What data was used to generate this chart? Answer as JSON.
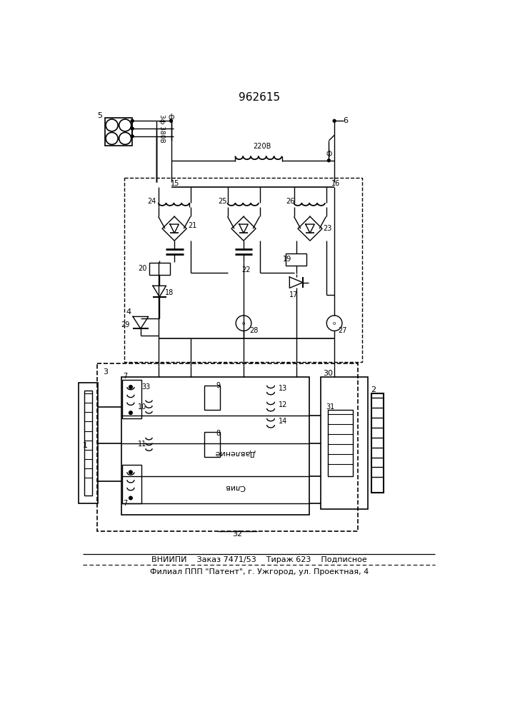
{
  "title": "962615",
  "footer_line1": "ВНИИПИ    Заказ 7471/53    Тираж 623    Подписное",
  "footer_line2": "Филиал ППП \"Патент\", г. Ужгород, ул. Проектная, 4",
  "bg_color": "#ffffff",
  "line_color": "#000000"
}
